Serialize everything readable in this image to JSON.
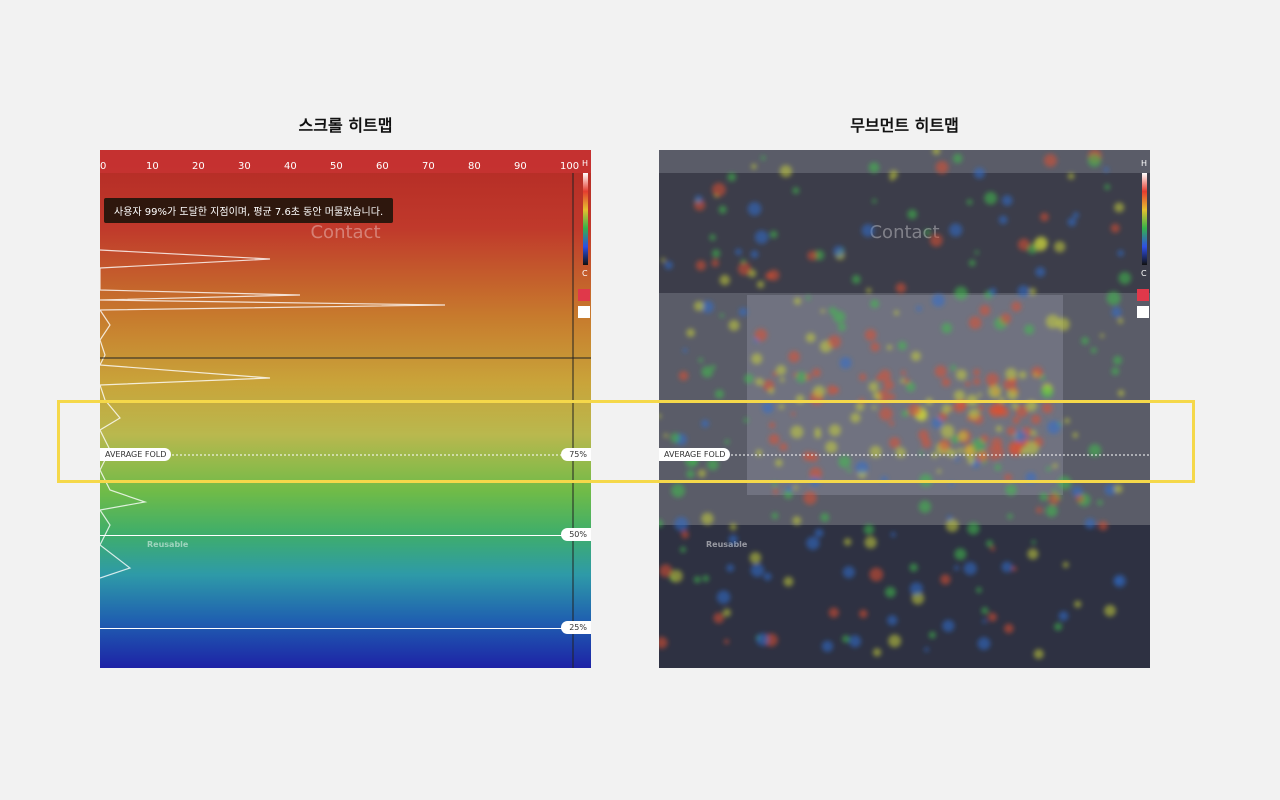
{
  "scroll_heatmap": {
    "title": "스크롤 히트맵",
    "ruler": [
      0,
      10,
      20,
      30,
      40,
      50,
      60,
      70,
      80,
      90,
      100
    ],
    "legend_high": "H",
    "legend_low": "C",
    "page_heading": "Contact",
    "footer_brand": "Reusable",
    "tooltip": "사용자 99%가 도달한 지점이며, 평균 7.6초 동안 머물렀습니다.",
    "fold_label": "AVERAGE FOLD",
    "markers": [
      "75%",
      "50%",
      "25%"
    ]
  },
  "movement_heatmap": {
    "title": "무브먼트 히트맵",
    "legend_high": "H",
    "legend_low": "C",
    "page_heading": "Contact",
    "footer_brand": "Reusable",
    "fold_label": "AVERAGE FOLD"
  }
}
